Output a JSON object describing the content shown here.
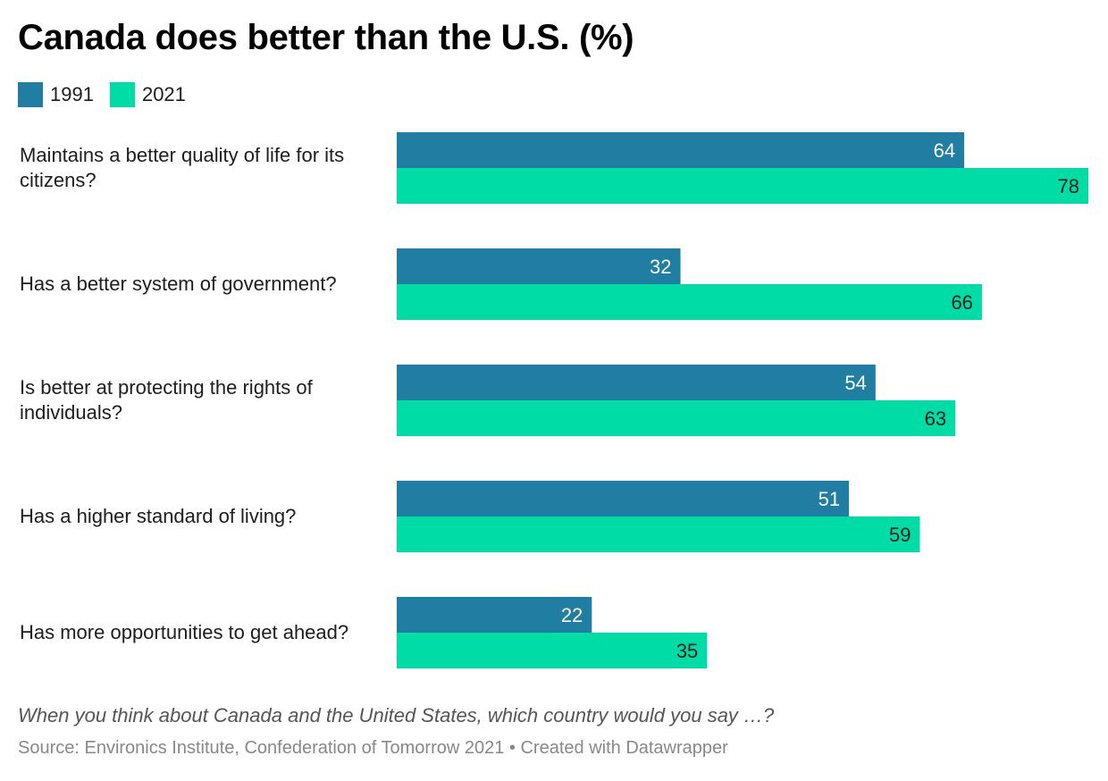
{
  "colors": {
    "series_1991": "#1f7ea1",
    "series_2021": "#00dca6",
    "label_on_dark": "#ffffff",
    "label_on_light": "#1d1d1d"
  },
  "chart_data": {
    "type": "bar",
    "orientation": "horizontal",
    "title": "Canada does better than the U.S. (%)",
    "categories": [
      "Maintains a better quality of life for its citizens?",
      "Has a better system of government?",
      "Is better at protecting the rights of individuals?",
      "Has a higher standard of living?",
      "Has more opportunities to get ahead?"
    ],
    "series": [
      {
        "name": "1991",
        "values": [
          64,
          32,
          54,
          51,
          22
        ]
      },
      {
        "name": "2021",
        "values": [
          78,
          66,
          63,
          59,
          35
        ]
      }
    ],
    "xlim": [
      0,
      78
    ],
    "grid": false,
    "legend_position": "top-left",
    "note": "When you think about Canada and the United States, which country would you say …?",
    "source": "Source: Environics Institute, Confederation of Tomorrow 2021 • Created with Datawrapper"
  }
}
